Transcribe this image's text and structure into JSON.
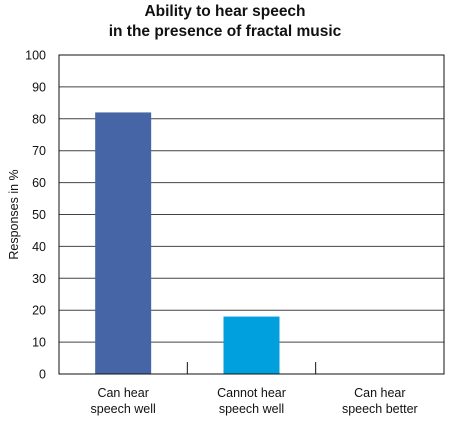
{
  "chart_data": {
    "type": "bar",
    "title": [
      "Ability to hear speech",
      "in the presence of fractal music"
    ],
    "xlabel": "",
    "ylabel": "Responses in %",
    "ylim": [
      0,
      100
    ],
    "yticks": [
      0,
      10,
      20,
      30,
      40,
      50,
      60,
      70,
      80,
      90,
      100
    ],
    "grid": true,
    "categories": [
      [
        "Can hear",
        "speech well"
      ],
      [
        "Cannot hear",
        "speech well"
      ],
      [
        "Can hear",
        "speech better"
      ]
    ],
    "values": [
      82,
      18,
      0
    ],
    "colors": [
      "#4565a7",
      "#009fde",
      "#4565a7"
    ]
  }
}
